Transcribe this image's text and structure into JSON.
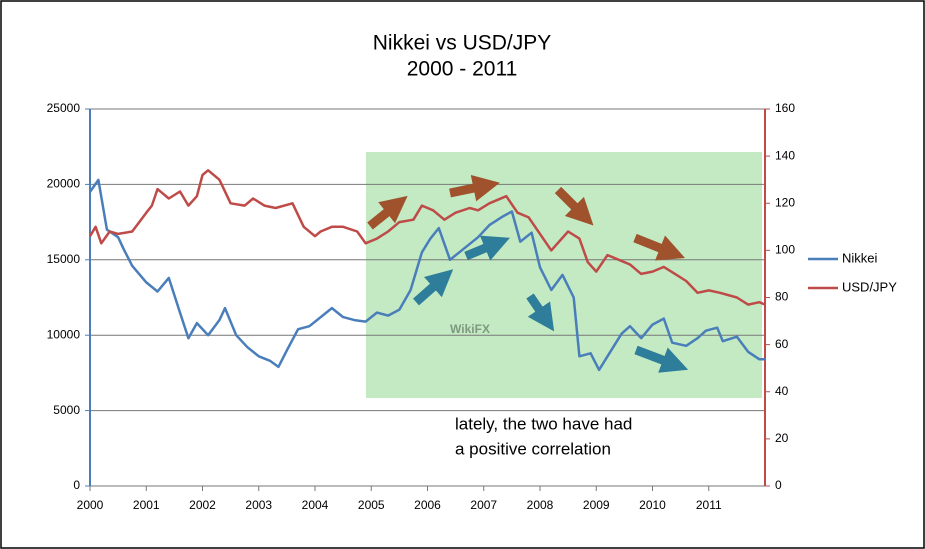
{
  "chart_data": {
    "type": "line",
    "title": "Nikkei vs USD/JPY",
    "subtitle": "2000 - 2011",
    "annotation": [
      "lately, the two have had",
      "a positive correlation"
    ],
    "watermark": "WikiFX",
    "xlim": [
      2000,
      2012
    ],
    "xticks": [
      2000,
      2001,
      2002,
      2003,
      2004,
      2005,
      2006,
      2007,
      2008,
      2009,
      2010,
      2011
    ],
    "ylim": [
      0,
      25000
    ],
    "yticks": [
      0,
      5000,
      10000,
      15000,
      20000,
      25000
    ],
    "y2lim": [
      0,
      160
    ],
    "y2ticks": [
      0,
      20,
      40,
      60,
      80,
      100,
      120,
      140,
      160
    ],
    "grid": true,
    "legend": "right",
    "series": [
      {
        "name": "Nikkei",
        "color": "#4a7ebb",
        "x": [
          2000.0,
          2000.15,
          2000.3,
          2000.5,
          2000.6,
          2000.75,
          2001.0,
          2001.2,
          2001.4,
          2001.6,
          2001.75,
          2001.9,
          2002.1,
          2002.3,
          2002.4,
          2002.6,
          2002.8,
          2003.0,
          2003.2,
          2003.35,
          2003.5,
          2003.7,
          2003.9,
          2004.2,
          2004.3,
          2004.5,
          2004.7,
          2004.9,
          2005.1,
          2005.3,
          2005.5,
          2005.7,
          2005.9,
          2006.05,
          2006.2,
          2006.4,
          2006.6,
          2006.9,
          2007.1,
          2007.35,
          2007.5,
          2007.65,
          2007.85,
          2008.0,
          2008.2,
          2008.4,
          2008.6,
          2008.7,
          2008.9,
          2009.05,
          2009.2,
          2009.45,
          2009.6,
          2009.8,
          2010.0,
          2010.2,
          2010.35,
          2010.6,
          2010.8,
          2010.95,
          2011.15,
          2011.25,
          2011.5,
          2011.7,
          2011.9,
          2012.0
        ],
        "values": [
          19500,
          20300,
          17000,
          16500,
          15700,
          14600,
          13500,
          12900,
          13800,
          11500,
          9800,
          10800,
          10000,
          11000,
          11800,
          10000,
          9200,
          8600,
          8300,
          7900,
          9000,
          10400,
          10600,
          11500,
          11800,
          11200,
          11000,
          10900,
          11500,
          11300,
          11700,
          13000,
          15500,
          16400,
          17100,
          15000,
          15600,
          16500,
          17300,
          17900,
          18200,
          16200,
          16800,
          14500,
          13000,
          14000,
          12500,
          8600,
          8800,
          7700,
          8600,
          10100,
          10600,
          9800,
          10700,
          11100,
          9500,
          9300,
          9800,
          10300,
          10500,
          9600,
          9900,
          8900,
          8400,
          8400
        ]
      },
      {
        "name": "USD/JPY",
        "color": "#be4b48",
        "axis": "y2",
        "x": [
          2000.0,
          2000.1,
          2000.2,
          2000.35,
          2000.5,
          2000.75,
          2001.0,
          2001.1,
          2001.2,
          2001.4,
          2001.6,
          2001.75,
          2001.9,
          2002.0,
          2002.1,
          2002.3,
          2002.5,
          2002.75,
          2002.9,
          2003.1,
          2003.3,
          2003.6,
          2003.8,
          2004.0,
          2004.1,
          2004.3,
          2004.5,
          2004.75,
          2004.9,
          2005.1,
          2005.3,
          2005.5,
          2005.75,
          2005.9,
          2006.1,
          2006.3,
          2006.5,
          2006.75,
          2006.9,
          2007.1,
          2007.4,
          2007.6,
          2007.8,
          2008.0,
          2008.2,
          2008.5,
          2008.7,
          2008.85,
          2009.0,
          2009.2,
          2009.4,
          2009.6,
          2009.8,
          2010.0,
          2010.2,
          2010.4,
          2010.6,
          2010.8,
          2011.0,
          2011.2,
          2011.5,
          2011.7,
          2011.9,
          2012.0
        ],
        "values": [
          106,
          110,
          103,
          108,
          107,
          108,
          116,
          119,
          126,
          122,
          125,
          119,
          123,
          132,
          134,
          130,
          120,
          119,
          122,
          119,
          118,
          120,
          110,
          106,
          108,
          110,
          110,
          108,
          103,
          105,
          108,
          112,
          113,
          119,
          117,
          113,
          116,
          118,
          117,
          120,
          123,
          116,
          114,
          107,
          100,
          108,
          105,
          95,
          91,
          98,
          96,
          94,
          90,
          91,
          93,
          90,
          87,
          82,
          83,
          82,
          80,
          77,
          78,
          77
        ]
      }
    ]
  }
}
